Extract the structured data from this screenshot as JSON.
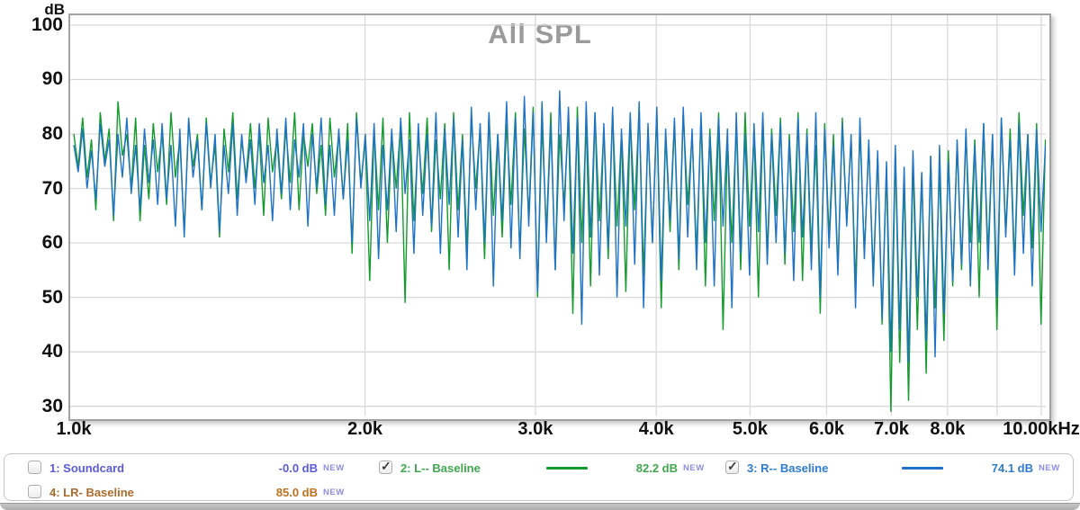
{
  "chart": {
    "title": "All SPL",
    "title_color": "#9a9a9a",
    "grid_color": "#d9d9d9",
    "y_axis": {
      "unit": "dB",
      "ticks": [
        100,
        90,
        80,
        70,
        60,
        50,
        40,
        30
      ]
    },
    "x_axis": {
      "ticks": [
        {
          "f": 1000,
          "label": "1.0k"
        },
        {
          "f": 2000,
          "label": "2.0k"
        },
        {
          "f": 3000,
          "label": "3.0k"
        },
        {
          "f": 4000,
          "label": "4.0k"
        },
        {
          "f": 5000,
          "label": "5.0k"
        },
        {
          "f": 6000,
          "label": "6.0k"
        },
        {
          "f": 7000,
          "label": "7.0k"
        },
        {
          "f": 8000,
          "label": "8.0k"
        },
        {
          "f": 10000,
          "label": "10.00kHz"
        }
      ],
      "unlabeled_gridlines_hz": [
        9000
      ]
    }
  },
  "chart_data": {
    "type": "line",
    "title": "All SPL",
    "ylabel": "dB",
    "x_scale": "log",
    "xlim": [
      1000,
      10100
    ],
    "ylim": [
      28.3,
      101.8
    ],
    "grid": true,
    "x_points": 221,
    "x_spacing": "log-uniform from 1000 Hz to 10100 Hz",
    "series": [
      {
        "name": "2: L-- Baseline",
        "color": "#149b2d",
        "values": [
          80,
          74,
          83,
          72,
          79,
          66,
          84,
          75,
          81,
          64,
          86,
          76,
          80,
          70,
          83,
          64,
          78,
          68,
          82,
          73,
          80,
          67,
          84,
          72,
          79,
          62,
          82,
          74,
          80,
          66,
          83,
          71,
          78,
          61,
          81,
          73,
          84,
          68,
          79,
          72,
          82,
          70,
          80,
          65,
          83,
          73,
          79,
          68,
          81,
          71,
          84,
          66,
          80,
          74,
          82,
          69,
          78,
          65,
          83,
          72,
          80,
          68,
          82,
          58,
          84,
          71,
          79,
          53,
          81,
          66,
          83,
          60,
          80,
          70,
          82,
          49,
          84,
          64,
          80,
          69,
          83,
          62,
          79,
          68,
          82,
          55,
          84,
          66,
          80,
          59,
          83,
          70,
          81,
          57,
          84,
          65,
          80,
          61,
          82,
          67,
          84,
          58,
          81,
          65,
          85,
          50,
          82,
          62,
          84,
          55,
          80,
          67,
          83,
          47,
          85,
          60,
          82,
          52,
          84,
          64,
          81,
          57,
          84,
          63,
          80,
          51,
          83,
          66,
          85,
          54,
          81,
          60,
          84,
          48,
          80,
          62,
          82,
          55,
          84,
          67,
          80,
          58,
          83,
          52,
          81,
          64,
          84,
          44,
          79,
          60,
          82,
          55,
          84,
          63,
          80,
          50,
          83,
          58,
          81,
          65,
          83,
          56,
          80,
          62,
          84,
          53,
          81,
          59,
          78,
          47,
          82,
          61,
          80,
          55,
          83,
          64,
          79,
          52,
          81,
          58,
          78,
          54,
          76,
          45,
          74,
          29,
          77,
          38,
          72,
          31,
          75,
          44,
          73,
          36,
          76,
          48,
          74,
          42,
          77,
          52,
          78,
          55,
          80,
          60,
          79,
          50,
          82,
          58,
          80,
          44,
          83,
          62,
          81,
          56,
          84,
          65,
          80,
          59,
          82,
          45,
          79
        ]
      },
      {
        "name": "3: R-- Baseline",
        "color": "#1f72c8",
        "values": [
          78,
          73,
          81,
          70,
          77,
          68,
          82,
          74,
          79,
          65,
          80,
          72,
          83,
          69,
          78,
          66,
          81,
          71,
          79,
          67,
          82,
          68,
          78,
          63,
          81,
          61,
          83,
          72,
          79,
          66,
          82,
          70,
          80,
          62,
          78,
          69,
          82,
          65,
          80,
          71,
          79,
          67,
          82,
          71,
          78,
          64,
          81,
          69,
          83,
          66,
          79,
          72,
          82,
          63,
          80,
          70,
          83,
          67,
          78,
          65,
          81,
          68,
          79,
          60,
          83,
          70,
          80,
          64,
          82,
          57,
          78,
          66,
          81,
          62,
          83,
          69,
          79,
          58,
          82,
          65,
          80,
          63,
          84,
          58,
          81,
          67,
          83,
          61,
          79,
          55,
          85,
          66,
          82,
          60,
          84,
          52,
          80,
          64,
          86,
          59,
          83,
          57,
          87,
          63,
          84,
          51,
          86,
          60,
          82,
          55,
          88,
          64,
          85,
          58,
          83,
          45,
          86,
          61,
          84,
          54,
          82,
          59,
          85,
          50,
          81,
          63,
          84,
          56,
          86,
          48,
          82,
          60,
          85,
          53,
          81,
          64,
          83,
          57,
          85,
          61,
          81,
          55,
          84,
          60,
          80,
          52,
          83,
          63,
          81,
          48,
          84,
          58,
          80,
          54,
          82,
          62,
          84,
          56,
          80,
          60,
          82,
          58,
          79,
          53,
          83,
          61,
          80,
          55,
          84,
          50,
          81,
          59,
          78,
          54,
          82,
          63,
          80,
          48,
          83,
          57,
          79,
          52,
          77,
          46,
          75,
          40,
          78,
          44,
          74,
          38,
          77,
          50,
          73,
          42,
          76,
          39,
          78,
          47,
          75,
          53,
          79,
          56,
          81,
          52,
          78,
          60,
          82,
          55,
          80,
          50,
          83,
          61,
          79,
          54,
          82,
          58,
          80,
          52,
          81,
          62,
          78
        ]
      }
    ],
    "legend_position": "bottom"
  },
  "legend": {
    "tag_color": "#8d8de8",
    "entries": [
      {
        "id": "1",
        "checked": false,
        "label": "1: Soundcard",
        "value": "-0.0 dB",
        "tag": "NEW",
        "color": "#5b5bd6",
        "value_color": "#5b5bd6",
        "line_color": null
      },
      {
        "id": "2",
        "checked": true,
        "label": "2: L-- Baseline",
        "value": "82.2 dB",
        "tag": "NEW",
        "color": "#3fa74e",
        "value_color": "#3fa74e",
        "line_color": "#149b2d"
      },
      {
        "id": "3",
        "checked": true,
        "label": "3: R-- Baseline",
        "value": "74.1 dB",
        "tag": "NEW",
        "color": "#2e7bd2",
        "value_color": "#2e7bd2",
        "line_color": "#1f72c8"
      },
      {
        "id": "4",
        "checked": false,
        "label": "4: LR- Baseline",
        "value": "85.0 dB",
        "tag": "NEW",
        "color": "#ad6a2c",
        "value_color": "#c0701f",
        "line_color": null
      }
    ]
  }
}
